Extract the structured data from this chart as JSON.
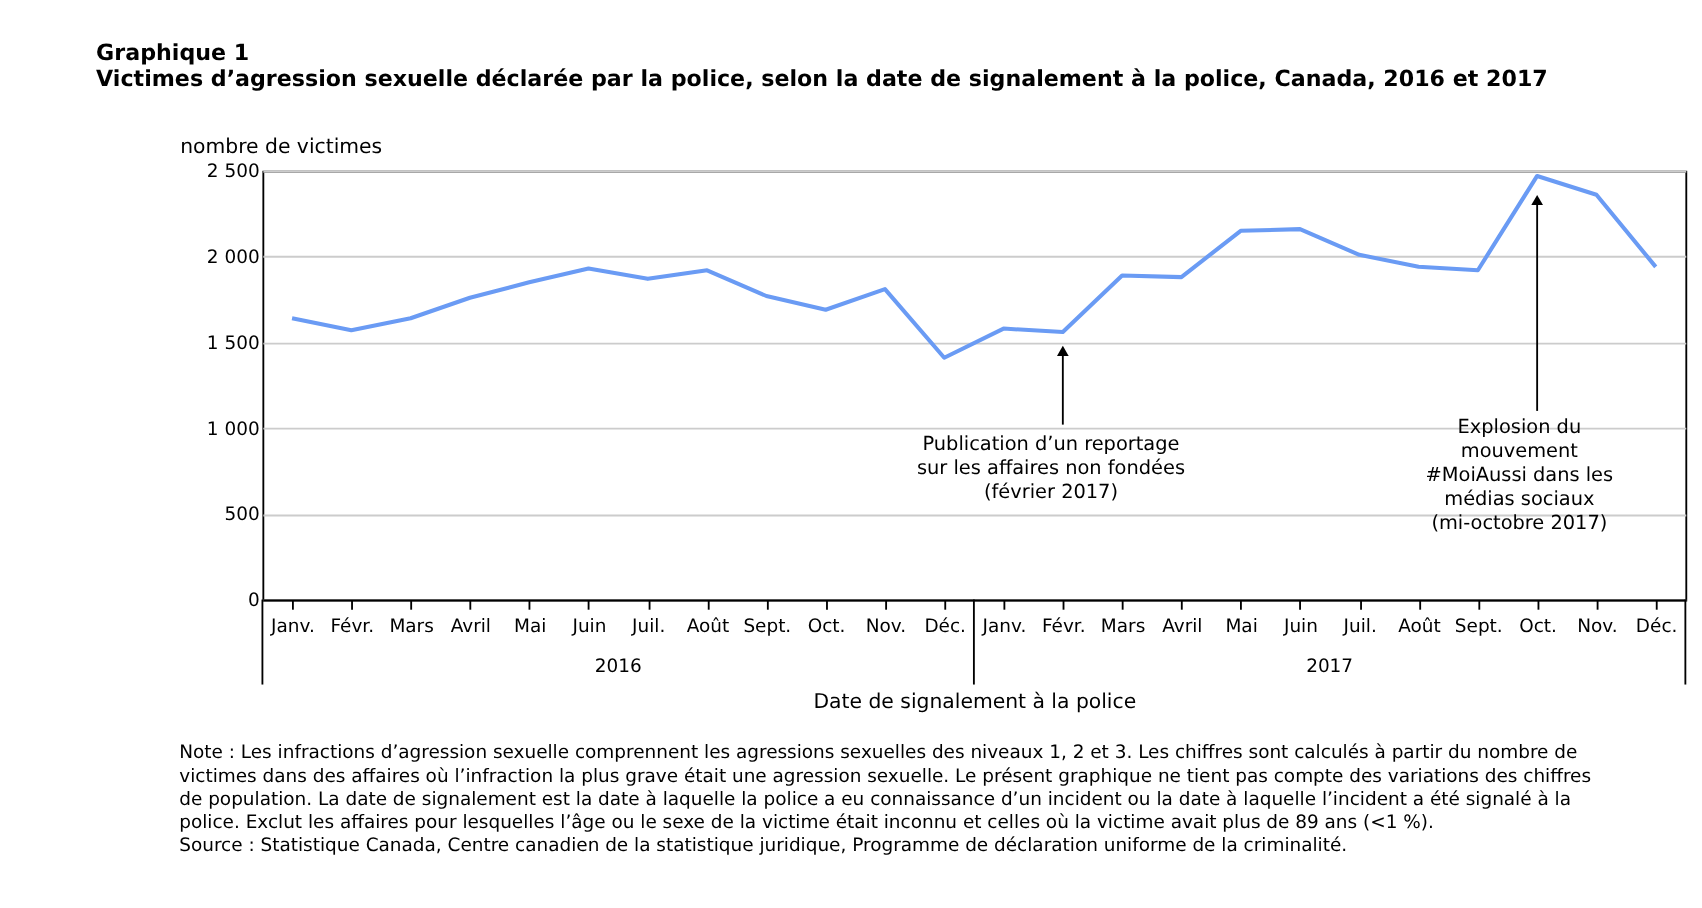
{
  "chart_data": {
    "type": "line",
    "title": "Graphique  1",
    "subtitle": "Victimes d’agression sexuelle déclarée par la police, selon la date de signalement à la police, Canada, 2016 et 2017",
    "ylabel": "nombre de victimes",
    "xlabel": "Date de signalement à la police",
    "categories": [
      "Janv.",
      "Févr.",
      "Mars",
      "Avril",
      "Mai",
      "Juin",
      "Juil.",
      "Août",
      "Sept.",
      "Oct.",
      "Nov.",
      "Déc.",
      "Janv.",
      "Févr.",
      "Mars",
      "Avril",
      "Mai",
      "Juin",
      "Juil.",
      "Août",
      "Sept.",
      "Oct.",
      "Nov.",
      "Déc."
    ],
    "series": [
      {
        "color": "#6a9bf4",
        "values": [
          1640,
          1570,
          1640,
          1760,
          1850,
          1930,
          1870,
          1920,
          1770,
          1690,
          1810,
          1410,
          1580,
          1560,
          1890,
          1880,
          2150,
          2160,
          2010,
          1940,
          1920,
          2470,
          2360,
          1940
        ]
      }
    ],
    "ylim": [
      0,
      2500
    ],
    "yticks": [
      0,
      500,
      {
        "value": 1000,
        "label": "1 000"
      },
      {
        "value": 1500,
        "label": "1 500"
      },
      {
        "value": 2000,
        "label": "2 000"
      },
      {
        "value": 2500,
        "label": "2 500"
      }
    ],
    "grid": "y",
    "legend": false,
    "marker": "none",
    "line_style": "solid",
    "annotations": [
      "2016",
      "2017",
      "Publication d’un reportage sur les affaires non fondées (février 2017)",
      "Explosion du mouvement #MoiAussi dans les médias sociaux (mi-octobre 2017)",
      "Note : Les infractions d’agression sexuelle comprennent les agressions sexuelles des niveaux 1, 2 et 3. Les chiffres sont calculés à partir du nombre de victimes dans des affaires où l’infraction la plus grave était une agression sexuelle. Le présent graphique ne tient pas compte des variations des chiffres de population. La date de signalement est la date à laquelle la police a eu connaissance d’un incident ou la date à laquelle l’incident a été signalé à la police. Exclut les affaires pour lesquelles l’âge ou le sexe de la victime était inconnu et celles où la victime avait plus de 89 ans (<1 %).",
      "Source : Statistique Canada, Centre canadien de la statistique juridique, Programme de déclaration uniforme de la criminalité."
    ]
  }
}
